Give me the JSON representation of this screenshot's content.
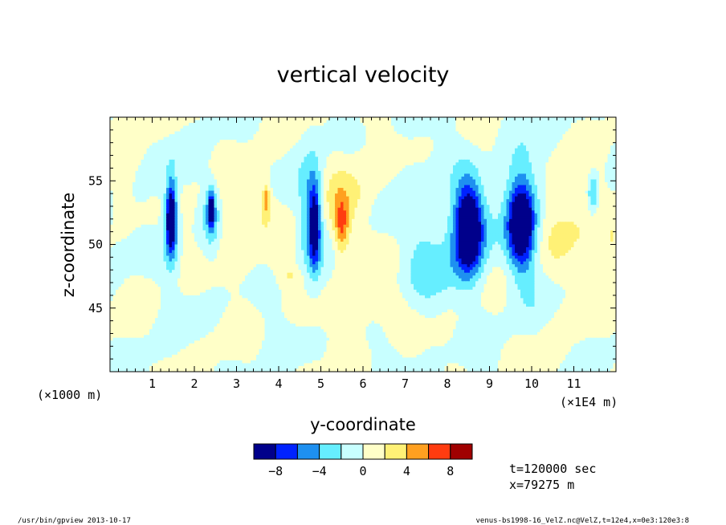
{
  "chart_data": {
    "type": "heatmap",
    "title": "vertical velocity",
    "xlabel": "y-coordinate",
    "ylabel": "z-coordinate",
    "x_unit_left": "(×1000 m)",
    "x_unit_right": "(×1E4 m)",
    "xlim": [
      0,
      12
    ],
    "ylim": [
      40,
      60
    ],
    "x_ticks": [
      "1",
      "2",
      "3",
      "4",
      "5",
      "6",
      "7",
      "8",
      "9",
      "10",
      "11"
    ],
    "y_ticks": [
      "45",
      "50",
      "55"
    ],
    "colorbar": {
      "tick_labels": [
        "−8",
        "−4",
        "0",
        "4",
        "8"
      ],
      "colors": [
        "#00008b",
        "#0022ff",
        "#1e90f0",
        "#66eeff",
        "#c8ffff",
        "#ffffc8",
        "#fff176",
        "#ffa020",
        "#ff3c10",
        "#a00000"
      ]
    },
    "blobs": [
      {
        "y": 1.45,
        "z": 51.5,
        "ry": 0.18,
        "rz": 3.5,
        "v": -6
      },
      {
        "y": 1.45,
        "z": 52.2,
        "ry": 0.1,
        "rz": 2.4,
        "v": -9
      },
      {
        "y": 2.4,
        "z": 52.5,
        "ry": 0.18,
        "rz": 2.4,
        "v": -5
      },
      {
        "y": 2.4,
        "z": 52.8,
        "ry": 0.06,
        "rz": 1.2,
        "v": -9
      },
      {
        "y": 0.25,
        "z": 54.5,
        "ry": 0.2,
        "rz": 2,
        "v": 2
      },
      {
        "y": 3.6,
        "z": 53,
        "ry": 0.35,
        "rz": 2.6,
        "v": 2
      },
      {
        "y": 3.7,
        "z": 53.5,
        "ry": 0.08,
        "rz": 1.1,
        "v": 5
      },
      {
        "y": 4.8,
        "z": 52.5,
        "ry": 0.3,
        "rz": 4.5,
        "v": -5
      },
      {
        "y": 4.85,
        "z": 51.5,
        "ry": 0.12,
        "rz": 3,
        "v": -8
      },
      {
        "y": 5.6,
        "z": 53,
        "ry": 0.65,
        "rz": 4,
        "v": 2.5
      },
      {
        "y": 5.5,
        "z": 51.5,
        "ry": 0.15,
        "rz": 2,
        "v": 5
      },
      {
        "y": 4.3,
        "z": 47.5,
        "ry": 0.3,
        "rz": 0.8,
        "v": 2
      },
      {
        "y": 8.5,
        "z": 51,
        "ry": 0.45,
        "rz": 4.5,
        "v": -5.5
      },
      {
        "y": 8.5,
        "z": 51.3,
        "ry": 0.28,
        "rz": 3,
        "v": -9
      },
      {
        "y": 9.8,
        "z": 52,
        "ry": 0.45,
        "rz": 4.5,
        "v": -5.5
      },
      {
        "y": 9.75,
        "z": 51.5,
        "ry": 0.28,
        "rz": 3,
        "v": -9
      },
      {
        "y": 10.9,
        "z": 51.5,
        "ry": 0.8,
        "rz": 4,
        "v": 2.5
      },
      {
        "y": 11.45,
        "z": 54,
        "ry": 0.12,
        "rz": 1.6,
        "v": -5
      },
      {
        "y": 7.5,
        "z": 49,
        "ry": 0.7,
        "rz": 5,
        "v": -2.5
      },
      {
        "y": 2.9,
        "z": 51,
        "ry": 0.5,
        "rz": 3,
        "v": 1.5
      },
      {
        "y": 6.5,
        "z": 45,
        "ry": 1.2,
        "rz": 2,
        "v": 1.5
      },
      {
        "y": 11.9,
        "z": 49,
        "ry": 0.15,
        "rz": 3,
        "v": 2
      }
    ],
    "annotation_time": "t=120000 sec",
    "annotation_x": "x=79275 m"
  },
  "footer": {
    "left": "/usr/bin/gpview  2013-10-17",
    "right": "venus-bs1998-16_VelZ.nc@VelZ,t=12e4,x=0e3:120e3:8"
  }
}
